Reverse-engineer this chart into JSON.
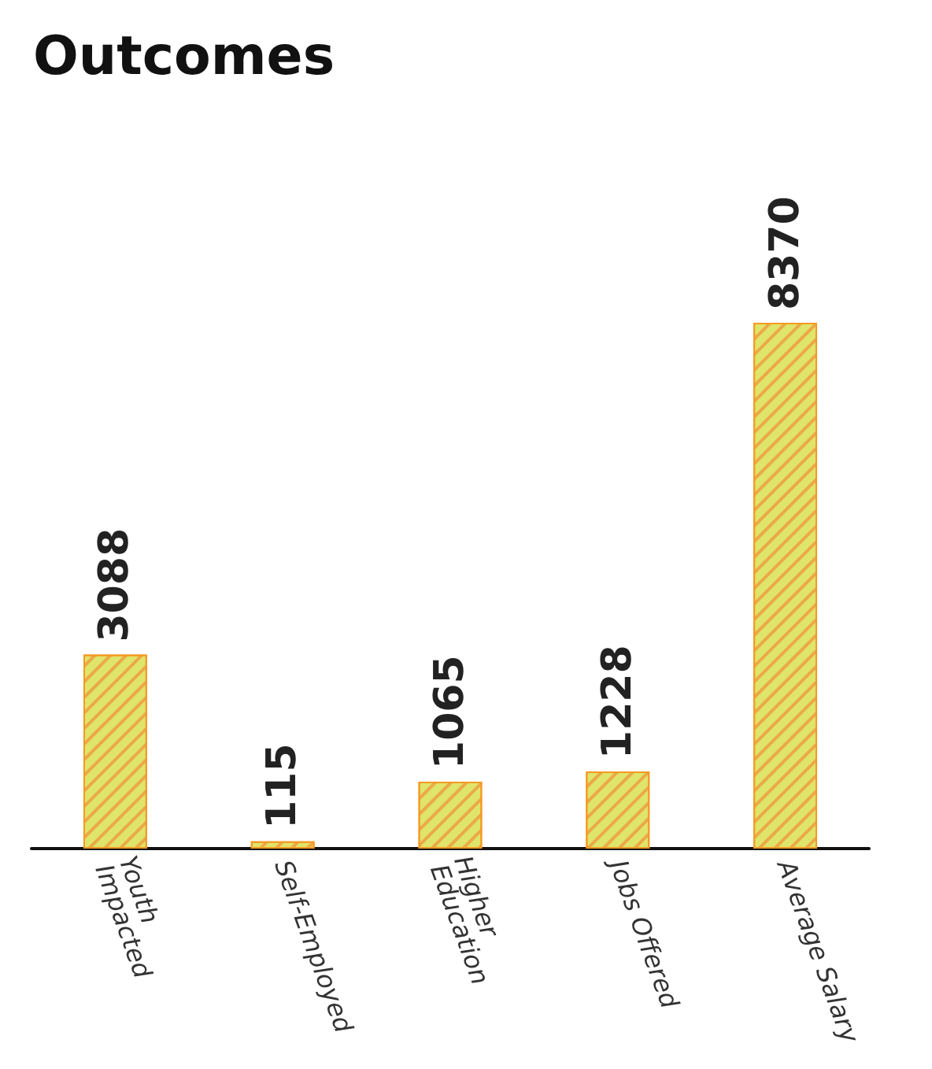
{
  "chart_data": {
    "type": "bar",
    "title": "Outcomes",
    "categories": [
      "Youth Impacted",
      "Self-Employed",
      "Higher Education",
      "Jobs Offered",
      "Average Salary"
    ],
    "values": [
      3088,
      115,
      1065,
      1228,
      8370
    ],
    "color": "#dfe46a",
    "data_labels": true
  }
}
